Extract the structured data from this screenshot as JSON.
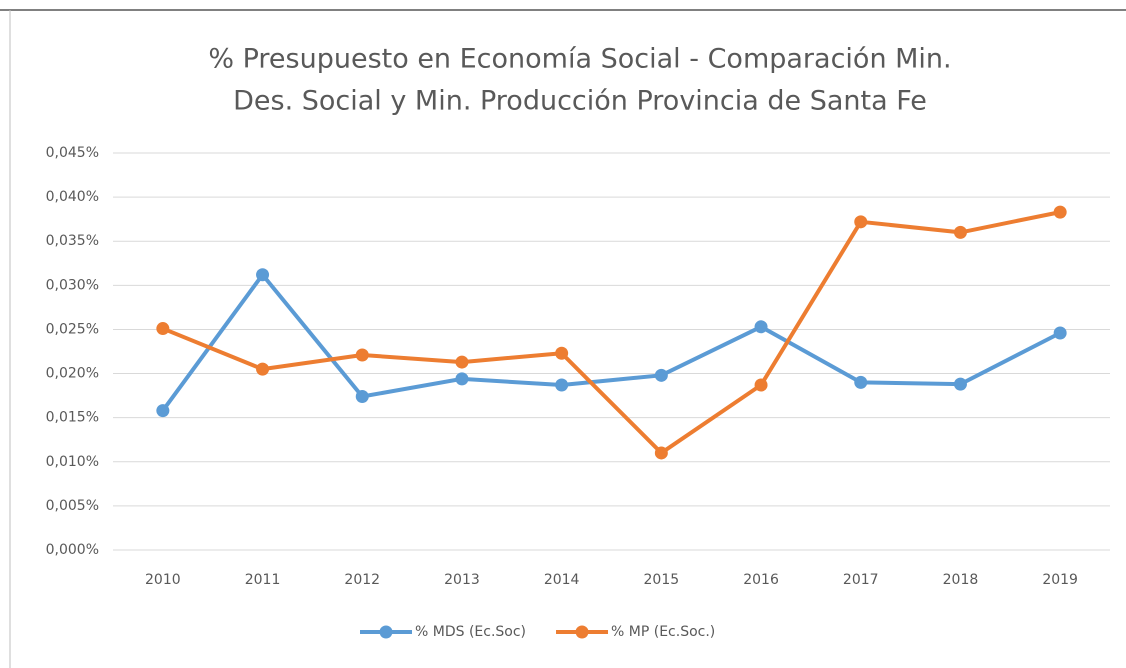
{
  "chart_data": {
    "type": "line",
    "title": [
      "% Presupuesto en Economía Social - Comparación Min.",
      "Des. Social  y Min. Producción Provincia de Santa Fe"
    ],
    "categories": [
      "2010",
      "2011",
      "2012",
      "2013",
      "2014",
      "2015",
      "2016",
      "2017",
      "2018",
      "2019"
    ],
    "series": [
      {
        "name": "% MDS (Ec.Soc)",
        "color": "#5b9bd5",
        "values": [
          0.0158,
          0.0312,
          0.0174,
          0.0194,
          0.0187,
          0.0198,
          0.0253,
          0.019,
          0.0188,
          0.0246
        ]
      },
      {
        "name": "% MP (Ec.Soc.)",
        "color": "#ed7d31",
        "values": [
          0.0251,
          0.0205,
          0.0221,
          0.0213,
          0.0223,
          0.011,
          0.0187,
          0.0372,
          0.036,
          0.0383
        ]
      }
    ],
    "ylim": [
      0,
      0.045
    ],
    "yticks": [
      {
        "value": 0,
        "label": "0,000%"
      },
      {
        "value": 0.005,
        "label": "0,005%"
      },
      {
        "value": 0.01,
        "label": "0,010%"
      },
      {
        "value": 0.015,
        "label": "0,015%"
      },
      {
        "value": 0.02,
        "label": "0,020%"
      },
      {
        "value": 0.025,
        "label": "0,025%"
      },
      {
        "value": 0.03,
        "label": "0,030%"
      },
      {
        "value": 0.035,
        "label": "0,035%"
      },
      {
        "value": 0.04,
        "label": "0,040%"
      },
      {
        "value": 0.045,
        "label": "0,045%"
      }
    ],
    "grid": true,
    "legend": "bottom"
  }
}
